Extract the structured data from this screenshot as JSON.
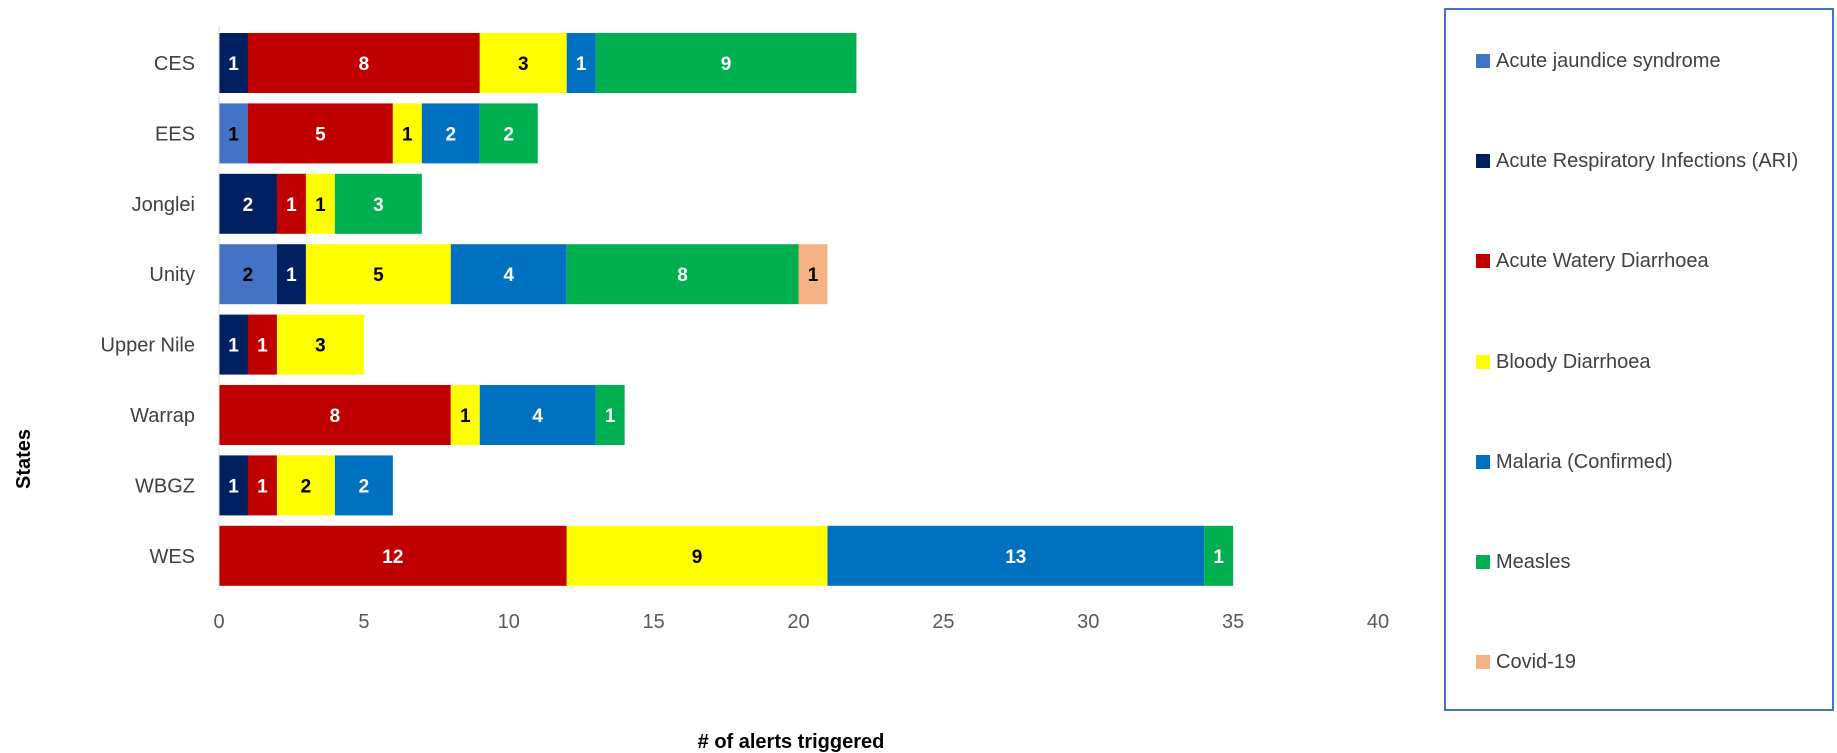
{
  "chart_data": {
    "type": "bar",
    "orientation": "horizontal",
    "stacked": true,
    "title": "",
    "xlabel": "# of alerts triggered",
    "ylabel": "States",
    "xlim": [
      0,
      40
    ],
    "xticks": [
      0,
      5,
      10,
      15,
      20,
      25,
      30,
      35,
      40
    ],
    "grid": false,
    "legend_position": "right",
    "categories": [
      "CES",
      "EES",
      "Jonglei",
      "Unity",
      "Upper Nile",
      "Warrap",
      "WBGZ",
      "WES"
    ],
    "series": [
      {
        "name": "Acute jaundice syndrome",
        "color": "#4472C4",
        "label_color": "#000000",
        "values": [
          0,
          1,
          0,
          2,
          0,
          0,
          0,
          0
        ]
      },
      {
        "name": "Acute Respiratory Infections (ARI)",
        "color": "#002060",
        "label_color": "#ffffff",
        "values": [
          1,
          0,
          2,
          1,
          1,
          0,
          1,
          0
        ]
      },
      {
        "name": "Acute Watery Diarrhoea",
        "color": "#C00000",
        "label_color": "#ffffff",
        "values": [
          8,
          5,
          1,
          0,
          1,
          8,
          1,
          12
        ]
      },
      {
        "name": "Bloody Diarrhoea",
        "color": "#FFFF00",
        "label_color": "#000000",
        "values": [
          3,
          1,
          1,
          5,
          3,
          1,
          2,
          9
        ]
      },
      {
        "name": "Malaria (Confirmed)",
        "color": "#0070C0",
        "label_color": "#ffffff",
        "values": [
          1,
          2,
          0,
          4,
          0,
          4,
          2,
          13
        ]
      },
      {
        "name": "Measles",
        "color": "#00B050",
        "label_color": "#ffffff",
        "values": [
          9,
          2,
          3,
          8,
          0,
          1,
          0,
          1
        ]
      },
      {
        "name": "Covid-19",
        "color": "#F4B183",
        "label_color": "#000000",
        "values": [
          0,
          0,
          0,
          1,
          0,
          0,
          0,
          0
        ]
      }
    ]
  }
}
